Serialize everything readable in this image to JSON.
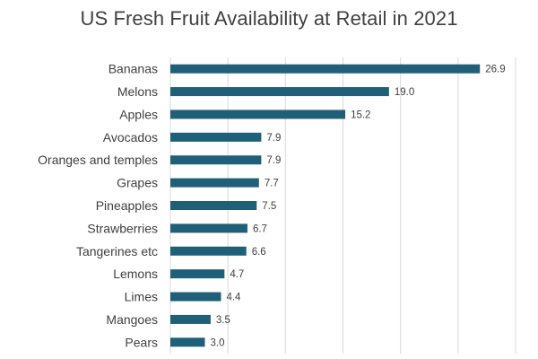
{
  "chart_data": {
    "type": "bar",
    "orientation": "horizontal",
    "title": "US Fresh Fruit Availability at Retail in 2021",
    "categories": [
      "Bananas",
      "Melons",
      "Apples",
      "Avocados",
      "Oranges and temples",
      "Grapes",
      "Pineapples",
      "Strawberries",
      "Tangerines etc",
      "Lemons",
      "Limes",
      "Mangoes",
      "Pears"
    ],
    "values": [
      26.9,
      19.0,
      15.2,
      7.9,
      7.9,
      7.7,
      7.5,
      6.7,
      6.6,
      4.7,
      4.4,
      3.5,
      3.0
    ],
    "value_labels": [
      "26.9",
      "19.0",
      "15.2",
      "7.9",
      "7.9",
      "7.7",
      "7.5",
      "6.7",
      "6.6",
      "4.7",
      "4.4",
      "3.5",
      "3.0"
    ],
    "xlim": [
      0,
      30
    ],
    "grid": true,
    "legend": "none",
    "bar_color": "#1f5f78",
    "grid_color": "#d9d9d9"
  }
}
